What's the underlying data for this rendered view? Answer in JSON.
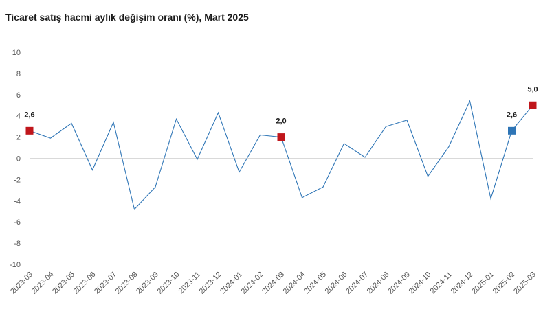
{
  "chart_data": {
    "type": "line",
    "title": "Ticaret satış hacmi aylık değişim oranı (%), Mart 2025",
    "xlabel": "",
    "ylabel": "",
    "ylim": [
      -10,
      10
    ],
    "yticks": [
      10,
      8,
      6,
      4,
      2,
      0,
      -2,
      -4,
      -6,
      -8,
      -10
    ],
    "grid": false,
    "categories": [
      "2023-03",
      "2023-04",
      "2023-05",
      "2023-06",
      "2023-07",
      "2023-08",
      "2023-09",
      "2023-10",
      "2023-11",
      "2023-12",
      "2024-01",
      "2024-02",
      "2024-03",
      "2024-04",
      "2024-05",
      "2024-06",
      "2024-07",
      "2024-08",
      "2024-09",
      "2024-10",
      "2024-11",
      "2024-12",
      "2025-01",
      "2025-02",
      "2025-03"
    ],
    "series": [
      {
        "values": [
          2.6,
          1.9,
          3.3,
          -1.1,
          3.4,
          -4.8,
          -2.7,
          3.7,
          -0.1,
          4.3,
          -1.3,
          2.2,
          2.0,
          -3.7,
          -2.7,
          1.4,
          0.1,
          3.0,
          3.6,
          -1.7,
          1.1,
          5.4,
          -3.8,
          2.6,
          5.0
        ]
      }
    ],
    "line_color": "#2e75b6",
    "highlights": [
      {
        "category": "2023-03",
        "value": 2.6,
        "label": "2,6",
        "color": "#c0161b"
      },
      {
        "category": "2024-03",
        "value": 2.0,
        "label": "2,0",
        "color": "#c0161b"
      },
      {
        "category": "2025-02",
        "value": 2.6,
        "label": "2,6",
        "color": "#2e75b6"
      },
      {
        "category": "2025-03",
        "value": 5.0,
        "label": "5,0",
        "color": "#c0161b"
      }
    ]
  }
}
